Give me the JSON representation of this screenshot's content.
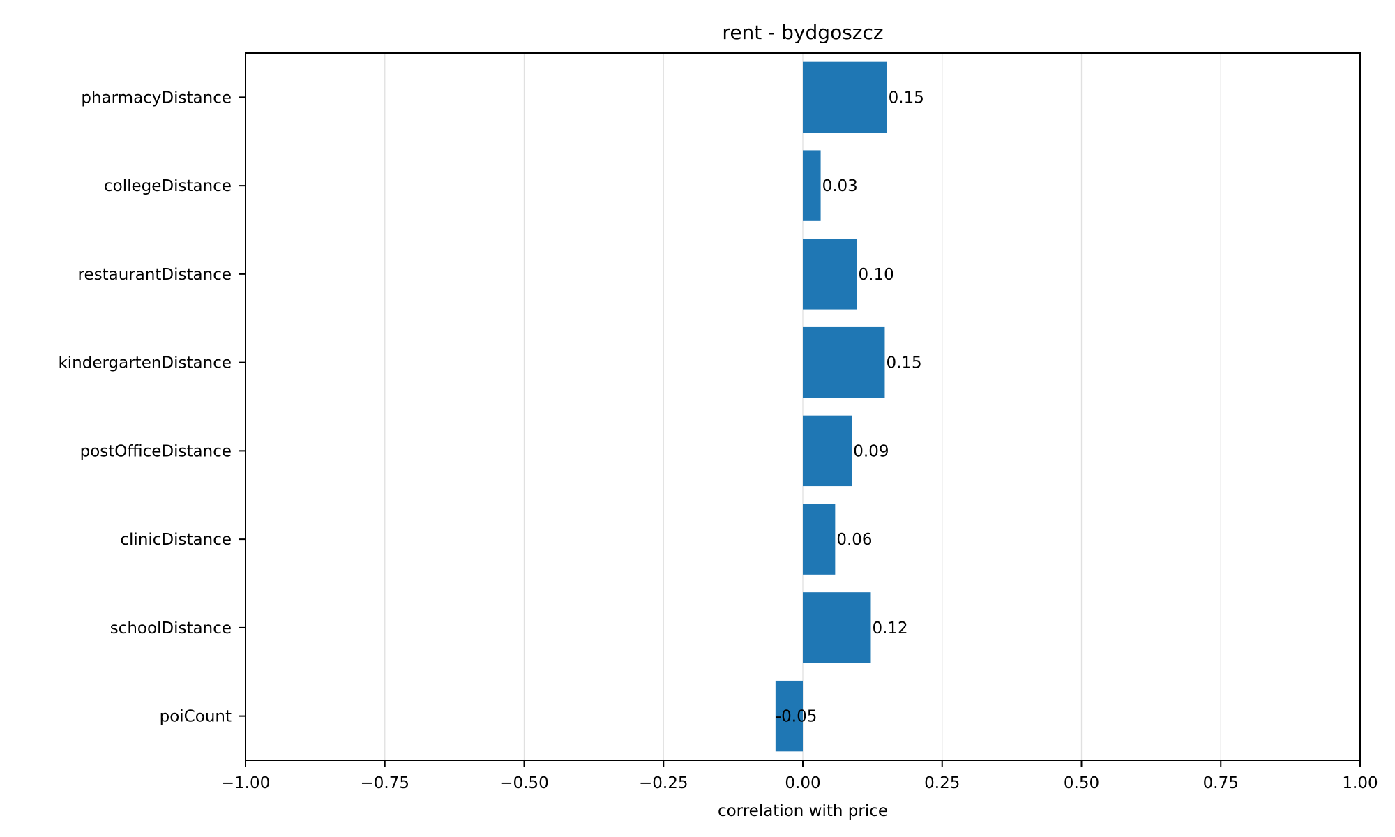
{
  "chart_data": {
    "type": "bar",
    "orientation": "horizontal",
    "title": "rent - bydgoszcz",
    "xlabel": "correlation with price",
    "ylabel": "",
    "xlim": [
      -1.0,
      1.0
    ],
    "x_ticks": [
      -1.0,
      -0.75,
      -0.5,
      -0.25,
      0.0,
      0.25,
      0.5,
      0.75,
      1.0
    ],
    "x_tick_labels": [
      "−1.00",
      "−0.75",
      "−0.50",
      "−0.25",
      "0.00",
      "0.25",
      "0.50",
      "0.75",
      "1.00"
    ],
    "grid": "vertical",
    "bar_color": "#1f77b4",
    "grid_color": "#e0e0e0",
    "categories": [
      "pharmacyDistance",
      "collegeDistance",
      "restaurantDistance",
      "kindergartenDistance",
      "postOfficeDistance",
      "clinicDistance",
      "schoolDistance",
      "poiCount"
    ],
    "values": [
      0.151,
      0.032,
      0.097,
      0.147,
      0.088,
      0.058,
      0.122,
      -0.049
    ],
    "value_labels": [
      "0.15",
      "0.03",
      "0.10",
      "0.15",
      "0.09",
      "0.06",
      "0.12",
      "-0.05"
    ]
  }
}
